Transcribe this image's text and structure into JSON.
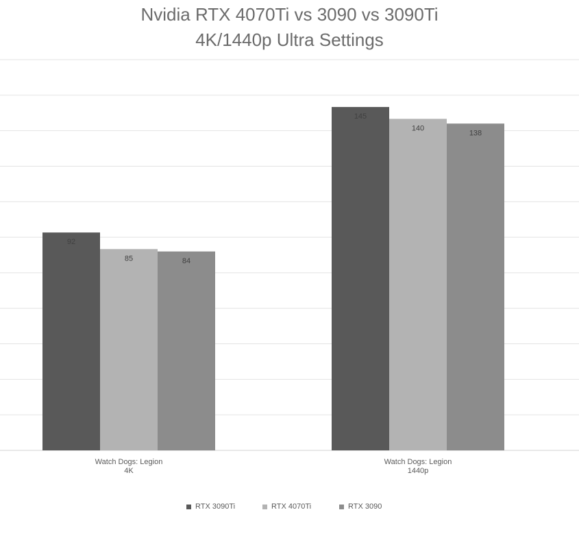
{
  "chart_data": {
    "type": "bar",
    "title": "Nvidia RTX 4070Ti vs 3090 vs 3090Ti",
    "subtitle": "4K/1440p Ultra Settings",
    "categories": [
      [
        "Watch Dogs: Legion",
        "4K"
      ],
      [
        "Watch Dogs: Legion",
        "1440p"
      ]
    ],
    "series": [
      {
        "name": "RTX 3090Ti",
        "color": "#595959",
        "values": [
          92,
          145
        ]
      },
      {
        "name": "RTX 4070Ti",
        "color": "#b3b3b3",
        "values": [
          85,
          140
        ]
      },
      {
        "name": "RTX 3090",
        "color": "#8c8c8c",
        "values": [
          84,
          138
        ]
      }
    ],
    "ylim": [
      0,
      165
    ],
    "grid": true,
    "legend_position": "bottom"
  }
}
